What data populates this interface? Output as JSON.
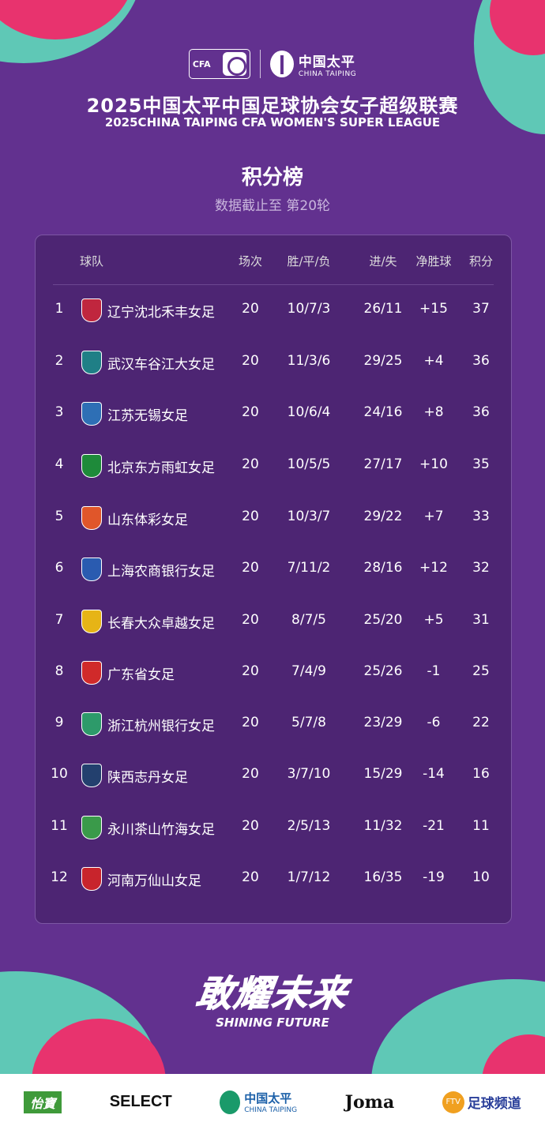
{
  "colors": {
    "background": "#62318f",
    "card": "#4d2573",
    "teal": "#5fc8b6",
    "pink": "#e8336e"
  },
  "header": {
    "cfa_logo": "CFA",
    "sponsor_logo": {
      "cn": "中国太平",
      "en": "CHINA TAIPING"
    },
    "title_cn": "2025中国太平中国足球协会女子超级联赛",
    "title_en": "2025CHINA TAIPING CFA WOMEN'S SUPER LEAGUE",
    "table_title": "积分榜",
    "subtitle": "数据截止至 第20轮"
  },
  "table": {
    "columns": {
      "team": "球队",
      "played": "场次",
      "wdl": "胜/平/负",
      "goals": "进/失",
      "gd": "净胜球",
      "points": "积分"
    },
    "rows": [
      {
        "rank": "1",
        "team": "辽宁沈北禾丰女足",
        "played": "20",
        "wdl": "10/7/3",
        "goals": "26/11",
        "gd": "+15",
        "points": "37",
        "badge": "#c0263e"
      },
      {
        "rank": "2",
        "team": "武汉车谷江大女足",
        "played": "20",
        "wdl": "11/3/6",
        "goals": "29/25",
        "gd": "+4",
        "points": "36",
        "badge": "#1f7f86"
      },
      {
        "rank": "3",
        "team": "江苏无锡女足",
        "played": "20",
        "wdl": "10/6/4",
        "goals": "24/16",
        "gd": "+8",
        "points": "36",
        "badge": "#2e6fb5"
      },
      {
        "rank": "4",
        "team": "北京东方雨虹女足",
        "played": "20",
        "wdl": "10/5/5",
        "goals": "27/17",
        "gd": "+10",
        "points": "35",
        "badge": "#1e8a3a"
      },
      {
        "rank": "5",
        "team": "山东体彩女足",
        "played": "20",
        "wdl": "10/3/7",
        "goals": "29/22",
        "gd": "+7",
        "points": "33",
        "badge": "#e0562a"
      },
      {
        "rank": "6",
        "team": "上海农商银行女足",
        "played": "20",
        "wdl": "7/11/2",
        "goals": "28/16",
        "gd": "+12",
        "points": "32",
        "badge": "#2a5bb0"
      },
      {
        "rank": "7",
        "team": "长春大众卓越女足",
        "played": "20",
        "wdl": "8/7/5",
        "goals": "25/20",
        "gd": "+5",
        "points": "31",
        "badge": "#e6b416"
      },
      {
        "rank": "8",
        "team": "广东省女足",
        "played": "20",
        "wdl": "7/4/9",
        "goals": "25/26",
        "gd": "-1",
        "points": "25",
        "badge": "#d02a2a"
      },
      {
        "rank": "9",
        "team": "浙江杭州银行女足",
        "played": "20",
        "wdl": "5/7/8",
        "goals": "23/29",
        "gd": "-6",
        "points": "22",
        "badge": "#2d9a6a"
      },
      {
        "rank": "10",
        "team": "陕西志丹女足",
        "played": "20",
        "wdl": "3/7/10",
        "goals": "15/29",
        "gd": "-14",
        "points": "16",
        "badge": "#23406e"
      },
      {
        "rank": "11",
        "team": "永川茶山竹海女足",
        "played": "20",
        "wdl": "2/5/13",
        "goals": "11/32",
        "gd": "-21",
        "points": "11",
        "badge": "#3a9a4a"
      },
      {
        "rank": "12",
        "team": "河南万仙山女足",
        "played": "20",
        "wdl": "1/7/12",
        "goals": "16/35",
        "gd": "-19",
        "points": "10",
        "badge": "#c8242c"
      }
    ]
  },
  "slogan": {
    "cn": "敢耀未来",
    "en": "SHINING FUTURE"
  },
  "sponsors": [
    "怡寶",
    "SELECT",
    "中国太平",
    "CHINA TAIPING",
    "Joma",
    "FTV",
    "足球频道"
  ]
}
